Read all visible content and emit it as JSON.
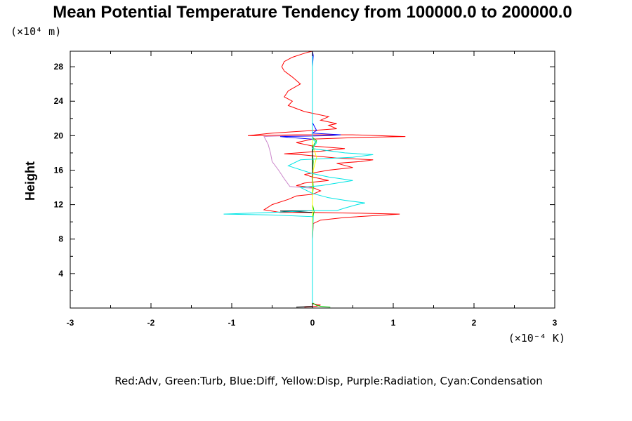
{
  "chart_data": {
    "type": "line",
    "title": "Mean Potential Temperature Tendency from 100000.0 to 200000.0",
    "ylabel": "Height",
    "y_unit_label": "(×10⁴ m)",
    "x_unit_label": "(×10⁻⁴ K)",
    "caption": "Red:Adv, Green:Turb, Blue:Diff, Yellow:Disp, Purple:Radiation, Cyan:Condensation",
    "xlim": [
      -3,
      3
    ],
    "ylim": [
      0,
      29.8
    ],
    "x_ticks": [
      {
        "value": -3,
        "label": "-3"
      },
      {
        "value": -2,
        "label": "-2"
      },
      {
        "value": -1,
        "label": "-1"
      },
      {
        "value": 0,
        "label": "0"
      },
      {
        "value": 1,
        "label": "1"
      },
      {
        "value": 2,
        "label": "2"
      },
      {
        "value": 3,
        "label": "3"
      }
    ],
    "y_ticks": [
      {
        "value": 4,
        "label": "4"
      },
      {
        "value": 8,
        "label": "8"
      },
      {
        "value": 12,
        "label": "12"
      },
      {
        "value": 16,
        "label": "16"
      },
      {
        "value": 20,
        "label": "20"
      },
      {
        "value": 24,
        "label": "24"
      },
      {
        "value": 28,
        "label": "28"
      }
    ],
    "series": [
      {
        "color": "#ff0000",
        "points": [
          [
            -0.1,
            0.1
          ],
          [
            0.05,
            0.2
          ],
          [
            0.1,
            0.35
          ],
          [
            0,
            0.5
          ],
          [
            0,
            2
          ],
          [
            0,
            8
          ],
          [
            0.01,
            9.8
          ],
          [
            0.1,
            10.2
          ],
          [
            0.4,
            10.5
          ],
          [
            0.9,
            10.8
          ],
          [
            1.08,
            10.9
          ],
          [
            0.6,
            11.0
          ],
          [
            0,
            11.1
          ],
          [
            -0.4,
            11.1
          ],
          [
            -0.6,
            11.4
          ],
          [
            -0.5,
            12.0
          ],
          [
            -0.3,
            12.6
          ],
          [
            -0.2,
            13.0
          ],
          [
            0,
            13.2
          ],
          [
            0.1,
            13.6
          ],
          [
            0,
            14.0
          ],
          [
            -0.2,
            14.2
          ],
          [
            -0.1,
            14.5
          ],
          [
            0.2,
            14.8
          ],
          [
            0,
            15.2
          ],
          [
            -0.1,
            15.5
          ],
          [
            0.2,
            16.0
          ],
          [
            0.5,
            16.3
          ],
          [
            0.3,
            16.8
          ],
          [
            0.6,
            17.0
          ],
          [
            0.75,
            17.2
          ],
          [
            0.3,
            17.4
          ],
          [
            -0.15,
            17.8
          ],
          [
            -0.35,
            17.9
          ],
          [
            0.1,
            18.2
          ],
          [
            0.4,
            18.5
          ],
          [
            0,
            18.8
          ],
          [
            -0.2,
            19.2
          ],
          [
            0,
            19.6
          ],
          [
            0.6,
            19.8
          ],
          [
            1.15,
            19.9
          ],
          [
            0.5,
            20.1
          ],
          [
            -0.2,
            20.1
          ],
          [
            -0.8,
            20.0
          ],
          [
            -0.5,
            20.3
          ],
          [
            0,
            20.6
          ],
          [
            0.3,
            20.8
          ],
          [
            0.2,
            21.2
          ],
          [
            0.3,
            21.4
          ],
          [
            0.1,
            21.8
          ],
          [
            0.2,
            22.2
          ],
          [
            -0.1,
            22.8
          ],
          [
            -0.3,
            23.5
          ],
          [
            -0.25,
            24.0
          ],
          [
            -0.35,
            24.5
          ],
          [
            -0.3,
            25.2
          ],
          [
            -0.15,
            26.0
          ],
          [
            -0.25,
            26.8
          ],
          [
            -0.35,
            27.5
          ],
          [
            -0.38,
            28.0
          ],
          [
            -0.35,
            28.6
          ],
          [
            -0.25,
            29.1
          ],
          [
            -0.12,
            29.5
          ],
          [
            -0.05,
            29.7
          ],
          [
            0,
            29.8
          ]
        ]
      },
      {
        "color": "#00cc00",
        "points": [
          [
            0.22,
            0.1
          ],
          [
            0.1,
            0.2
          ],
          [
            0.05,
            0.3
          ],
          [
            0,
            0.6
          ],
          [
            0,
            2
          ],
          [
            0,
            9
          ],
          [
            0.01,
            10.8
          ],
          [
            0.02,
            11.2
          ],
          [
            0,
            12
          ],
          [
            0,
            13
          ],
          [
            0.01,
            14
          ],
          [
            0,
            15.5
          ],
          [
            0.01,
            17
          ],
          [
            0,
            18
          ],
          [
            0.02,
            19
          ],
          [
            0.05,
            19.4
          ],
          [
            0,
            19.8
          ],
          [
            0,
            21
          ],
          [
            0,
            24
          ],
          [
            0,
            28
          ],
          [
            0,
            29.8
          ]
        ]
      },
      {
        "color": "#0000ff",
        "points": [
          [
            0,
            0.2
          ],
          [
            0,
            8
          ],
          [
            0,
            10.8
          ],
          [
            0,
            11.2
          ],
          [
            0,
            18
          ],
          [
            0,
            19.6
          ],
          [
            -0.3,
            19.8
          ],
          [
            -0.4,
            19.9
          ],
          [
            0.2,
            20.0
          ],
          [
            0.35,
            20.1
          ],
          [
            0,
            20.3
          ],
          [
            0.05,
            20.6
          ],
          [
            0,
            21.5
          ],
          [
            0,
            24
          ],
          [
            0,
            28
          ],
          [
            0.01,
            29.3
          ],
          [
            0,
            29.8
          ]
        ]
      },
      {
        "color": "#000000",
        "points": [
          [
            -0.2,
            0.1
          ],
          [
            0,
            0.2
          ],
          [
            0,
            8
          ],
          [
            0,
            10.6
          ],
          [
            0,
            11.1
          ],
          [
            -0.4,
            11.25
          ],
          [
            0,
            11.3
          ],
          [
            0,
            20
          ],
          [
            0,
            29.8
          ]
        ]
      },
      {
        "color": "#ffff00",
        "points": [
          [
            0,
            0.2
          ],
          [
            0,
            8
          ],
          [
            0,
            12
          ],
          [
            0,
            14
          ],
          [
            0.01,
            16
          ],
          [
            0.05,
            17.5
          ],
          [
            0,
            19
          ],
          [
            0,
            29.8
          ]
        ]
      },
      {
        "color": "#cc88cc",
        "points": [
          [
            0,
            13.9
          ],
          [
            -0.15,
            14.0
          ],
          [
            -0.28,
            14.1
          ],
          [
            -0.35,
            15.0
          ],
          [
            -0.42,
            16.0
          ],
          [
            -0.5,
            17.0
          ],
          [
            -0.52,
            18.0
          ],
          [
            -0.55,
            19.0
          ],
          [
            -0.6,
            19.9
          ],
          [
            -0.3,
            20.0
          ],
          [
            0,
            20.0
          ]
        ]
      },
      {
        "color": "#00e5e5",
        "points": [
          [
            0,
            0.2
          ],
          [
            0,
            2
          ],
          [
            0,
            8
          ],
          [
            0.01,
            10.6
          ],
          [
            -0.5,
            10.8
          ],
          [
            -1.1,
            10.9
          ],
          [
            -0.5,
            11.1
          ],
          [
            0,
            11.3
          ],
          [
            0.3,
            11.3
          ],
          [
            0.4,
            11.6
          ],
          [
            0.55,
            12.0
          ],
          [
            0.65,
            12.2
          ],
          [
            0.4,
            12.5
          ],
          [
            0.2,
            12.8
          ],
          [
            0,
            13.3
          ],
          [
            -0.15,
            14.0
          ],
          [
            0.1,
            14.2
          ],
          [
            0.5,
            14.8
          ],
          [
            0.2,
            15.2
          ],
          [
            0,
            15.6
          ],
          [
            -0.3,
            16.5
          ],
          [
            -0.15,
            17.2
          ],
          [
            0.5,
            17.5
          ],
          [
            0.75,
            17.8
          ],
          [
            0.4,
            18.0
          ],
          [
            0,
            18.5
          ],
          [
            0.05,
            19.2
          ],
          [
            0,
            19.6
          ],
          [
            0,
            20
          ],
          [
            0,
            21.5
          ],
          [
            0,
            24
          ],
          [
            0,
            28
          ],
          [
            0,
            29.8
          ]
        ]
      }
    ]
  }
}
